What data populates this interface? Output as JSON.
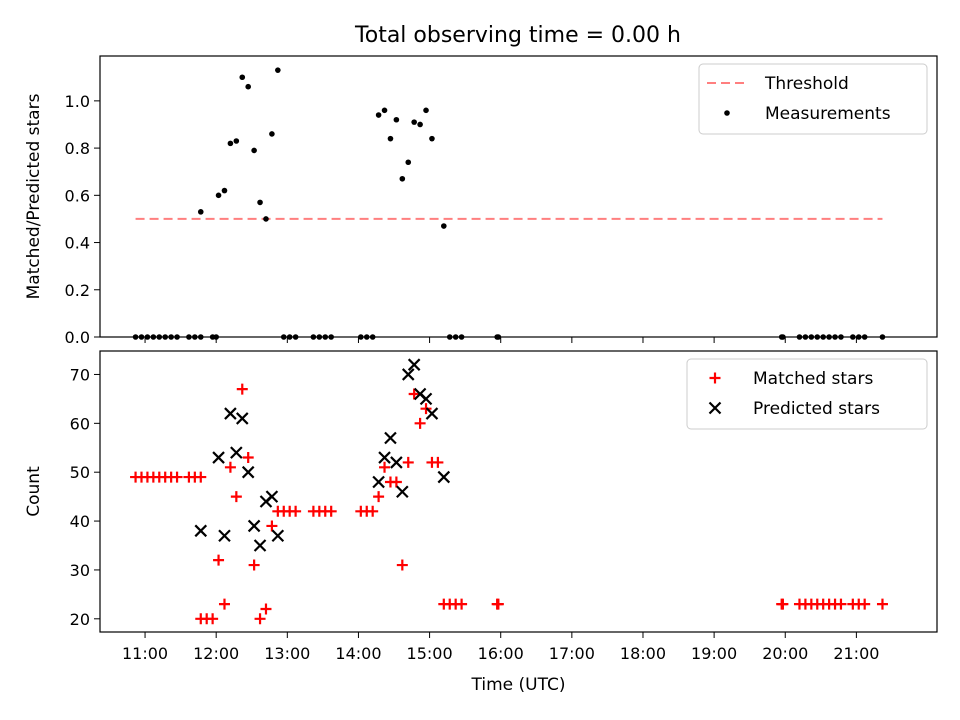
{
  "figure_title": "Total observing time = 0.00 h",
  "chart_data": [
    {
      "type": "scatter",
      "panel": "top",
      "title": "Total observing time = 0.00 h",
      "xlabel": "",
      "ylabel": "Matched/Predicted stars",
      "xlim": [
        "10:22",
        "22:08"
      ],
      "ylim": [
        0,
        1.19
      ],
      "yticks": [
        "0.0",
        "0.2",
        "0.4",
        "0.6",
        "0.8",
        "1.0"
      ],
      "legend_position": "upper right",
      "threshold": {
        "name": "Threshold",
        "value": 0.5,
        "x_start": "10:52",
        "x_end": "21:22",
        "color": "#ff7f7f",
        "style": "dashed"
      },
      "series": [
        {
          "name": "Measurements",
          "color": "#000000",
          "marker": "dot",
          "points": [
            [
              "10:52",
              0
            ],
            [
              "10:57",
              0
            ],
            [
              "11:02",
              0
            ],
            [
              "11:07",
              0
            ],
            [
              "11:12",
              0
            ],
            [
              "11:17",
              0
            ],
            [
              "11:22",
              0
            ],
            [
              "11:27",
              0
            ],
            [
              "11:37",
              0
            ],
            [
              "11:42",
              0
            ],
            [
              "11:47",
              0
            ],
            [
              "11:57",
              0
            ],
            [
              "12:00",
              0
            ],
            [
              "11:47",
              0.53
            ],
            [
              "12:02",
              0.6
            ],
            [
              "12:07",
              0.62
            ],
            [
              "12:12",
              0.82
            ],
            [
              "12:17",
              0.83
            ],
            [
              "12:22",
              1.1
            ],
            [
              "12:27",
              1.06
            ],
            [
              "12:32",
              0.79
            ],
            [
              "12:37",
              0.57
            ],
            [
              "12:42",
              0.5
            ],
            [
              "12:47",
              0.86
            ],
            [
              "12:52",
              1.13
            ],
            [
              "12:57",
              0
            ],
            [
              "13:02",
              0
            ],
            [
              "13:07",
              0
            ],
            [
              "13:22",
              0
            ],
            [
              "13:27",
              0
            ],
            [
              "13:32",
              0
            ],
            [
              "13:37",
              0
            ],
            [
              "14:02",
              0
            ],
            [
              "14:07",
              0
            ],
            [
              "14:12",
              0
            ],
            [
              "14:17",
              0.94
            ],
            [
              "14:22",
              0.96
            ],
            [
              "14:27",
              0.84
            ],
            [
              "14:32",
              0.92
            ],
            [
              "14:37",
              0.67
            ],
            [
              "14:42",
              0.74
            ],
            [
              "14:47",
              0.91
            ],
            [
              "14:52",
              0.9
            ],
            [
              "14:57",
              0.96
            ],
            [
              "15:02",
              0.84
            ],
            [
              "15:12",
              0.47
            ],
            [
              "15:17",
              0
            ],
            [
              "15:22",
              0
            ],
            [
              "15:27",
              0
            ],
            [
              "15:57",
              0
            ],
            [
              "15:58",
              0
            ],
            [
              "19:57",
              0
            ],
            [
              "19:58",
              0
            ],
            [
              "20:12",
              0
            ],
            [
              "20:17",
              0
            ],
            [
              "20:22",
              0
            ],
            [
              "20:27",
              0
            ],
            [
              "20:32",
              0
            ],
            [
              "20:37",
              0
            ],
            [
              "20:42",
              0
            ],
            [
              "20:47",
              0
            ],
            [
              "20:57",
              0
            ],
            [
              "21:02",
              0
            ],
            [
              "21:07",
              0
            ],
            [
              "21:22",
              0
            ]
          ]
        }
      ]
    },
    {
      "type": "scatter",
      "panel": "bottom",
      "title": "",
      "xlabel": "Time (UTC)",
      "ylabel": "Count",
      "xlim": [
        "10:22",
        "22:08"
      ],
      "ylim": [
        17.3,
        74.8
      ],
      "xticks": [
        "11:00",
        "12:00",
        "13:00",
        "14:00",
        "15:00",
        "16:00",
        "17:00",
        "18:00",
        "19:00",
        "20:00",
        "21:00"
      ],
      "yticks": [
        "20",
        "30",
        "40",
        "50",
        "60",
        "70"
      ],
      "legend_position": "upper right",
      "series": [
        {
          "name": "Matched stars",
          "color": "#ff0000",
          "marker": "plus",
          "points": [
            [
              "10:52",
              49
            ],
            [
              "10:57",
              49
            ],
            [
              "11:02",
              49
            ],
            [
              "11:07",
              49
            ],
            [
              "11:12",
              49
            ],
            [
              "11:17",
              49
            ],
            [
              "11:22",
              49
            ],
            [
              "11:27",
              49
            ],
            [
              "11:37",
              49
            ],
            [
              "11:42",
              49
            ],
            [
              "11:47",
              49
            ],
            [
              "11:47",
              20
            ],
            [
              "11:52",
              20
            ],
            [
              "11:57",
              20
            ],
            [
              "12:02",
              32
            ],
            [
              "12:07",
              23
            ],
            [
              "12:12",
              51
            ],
            [
              "12:17",
              45
            ],
            [
              "12:22",
              67
            ],
            [
              "12:27",
              53
            ],
            [
              "12:32",
              31
            ],
            [
              "12:37",
              20
            ],
            [
              "12:42",
              22
            ],
            [
              "12:47",
              39
            ],
            [
              "12:52",
              42
            ],
            [
              "12:57",
              42
            ],
            [
              "13:02",
              42
            ],
            [
              "13:07",
              42
            ],
            [
              "13:22",
              42
            ],
            [
              "13:27",
              42
            ],
            [
              "13:32",
              42
            ],
            [
              "13:37",
              42
            ],
            [
              "14:02",
              42
            ],
            [
              "14:07",
              42
            ],
            [
              "14:12",
              42
            ],
            [
              "14:17",
              45
            ],
            [
              "14:22",
              51
            ],
            [
              "14:27",
              48
            ],
            [
              "14:32",
              48
            ],
            [
              "14:37",
              31
            ],
            [
              "14:42",
              52
            ],
            [
              "14:47",
              66
            ],
            [
              "14:52",
              60
            ],
            [
              "14:57",
              63
            ],
            [
              "15:02",
              52
            ],
            [
              "15:07",
              52
            ],
            [
              "15:12",
              23
            ],
            [
              "15:17",
              23
            ],
            [
              "15:22",
              23
            ],
            [
              "15:27",
              23
            ],
            [
              "15:57",
              23
            ],
            [
              "15:58",
              23
            ],
            [
              "19:57",
              23
            ],
            [
              "19:58",
              23
            ],
            [
              "20:12",
              23
            ],
            [
              "20:17",
              23
            ],
            [
              "20:22",
              23
            ],
            [
              "20:27",
              23
            ],
            [
              "20:32",
              23
            ],
            [
              "20:37",
              23
            ],
            [
              "20:42",
              23
            ],
            [
              "20:47",
              23
            ],
            [
              "20:57",
              23
            ],
            [
              "21:02",
              23
            ],
            [
              "21:07",
              23
            ],
            [
              "21:22",
              23
            ]
          ]
        },
        {
          "name": "Predicted stars",
          "color": "#000000",
          "marker": "x",
          "points": [
            [
              "11:47",
              38
            ],
            [
              "12:02",
              53
            ],
            [
              "12:07",
              37
            ],
            [
              "12:12",
              62
            ],
            [
              "12:17",
              54
            ],
            [
              "12:22",
              61
            ],
            [
              "12:27",
              50
            ],
            [
              "12:32",
              39
            ],
            [
              "12:37",
              35
            ],
            [
              "12:42",
              44
            ],
            [
              "12:47",
              45
            ],
            [
              "12:52",
              37
            ],
            [
              "14:17",
              48
            ],
            [
              "14:22",
              53
            ],
            [
              "14:27",
              57
            ],
            [
              "14:32",
              52
            ],
            [
              "14:37",
              46
            ],
            [
              "14:42",
              70
            ],
            [
              "14:47",
              72
            ],
            [
              "14:52",
              66
            ],
            [
              "14:57",
              65
            ],
            [
              "15:02",
              62
            ],
            [
              "15:12",
              49
            ]
          ]
        }
      ]
    }
  ]
}
